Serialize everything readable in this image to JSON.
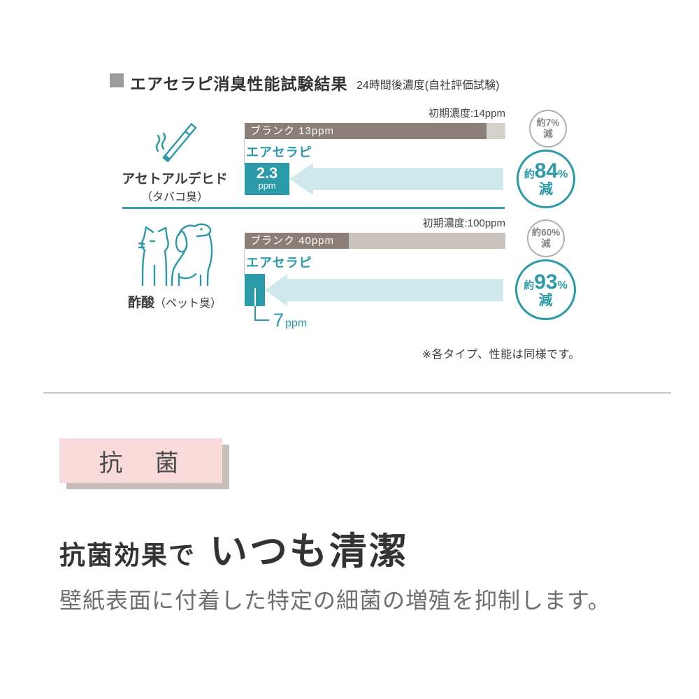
{
  "deodorant": {
    "title": "エアセラピ消臭性能試験結果",
    "subtitle": "24時間後濃度(自社評価試験)",
    "note": "※各タイプ、性能は同様です。"
  },
  "chart_data": [
    {
      "type": "bar",
      "title": "アセトアルデヒド（タバコ臭）",
      "substance": "アセトアルデヒド",
      "odor": "（タバコ臭）",
      "icon": "cigarette-icon",
      "unit": "ppm",
      "initial": 14,
      "initial_label": "初期濃度:14ppm",
      "series": [
        {
          "name": "ブランク",
          "value": 13,
          "bar_label": "ブランク 13ppm",
          "reduction_pct": 7,
          "reduction": {
            "approx": "約",
            "value": "7",
            "percent": "%",
            "down": "減"
          }
        },
        {
          "name": "エアセラピ",
          "value": 2.3,
          "value_display": "2.3",
          "unit": "ppm",
          "reduction_pct": 84,
          "reduction": {
            "approx": "約",
            "value": "84",
            "percent": "%",
            "down": "減"
          }
        }
      ]
    },
    {
      "type": "bar",
      "title": "酢酸（ペット臭）",
      "substance": "酢酸",
      "odor": "（ペット臭）",
      "icon": "cat-dog-icon",
      "unit": "ppm",
      "initial": 100,
      "initial_label": "初期濃度:100ppm",
      "series": [
        {
          "name": "ブランク",
          "value": 40,
          "bar_label": "ブランク 40ppm",
          "reduction_pct": 60,
          "reduction": {
            "approx": "約",
            "value": "60",
            "percent": "%",
            "down": "減"
          }
        },
        {
          "name": "エアセラピ",
          "value": 7,
          "value_display": "7",
          "unit": "ppm",
          "reduction_pct": 93,
          "reduction": {
            "approx": "約",
            "value": "93",
            "percent": "%",
            "down": "減"
          }
        }
      ]
    }
  ],
  "antibacterial": {
    "badge": "抗　菌",
    "heading_small": "抗菌効果で",
    "heading_large": "いつも清潔",
    "body": "壁紙表面に付着した特定の細菌の増殖を抑制します。"
  },
  "colors": {
    "teal": "#2a9aa8",
    "teal_light": "#cfe8ec",
    "bar_dark": "#8a7e77",
    "bar_light_1": "#d5d1cc",
    "bar_light_2": "#cbc4be",
    "gray_circle_border": "#b3aeab",
    "pink": "#f9dada"
  }
}
